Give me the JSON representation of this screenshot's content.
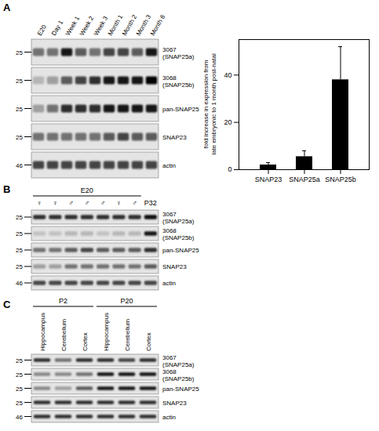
{
  "chart_data": {
    "type": "bar",
    "ylabel": "fold increase in expression from late embryonic to 1 month post-natal",
    "categories": [
      "SNAP23",
      "SNAP25a",
      "SNAP25b"
    ],
    "values": [
      2,
      5.5,
      38
    ],
    "errors": [
      1,
      2.5,
      14
    ],
    "color": "#000000",
    "ylim": [
      0,
      55
    ],
    "yticks": [
      0,
      20,
      40
    ]
  },
  "panels": [
    {
      "letter": "A",
      "lanes": [
        "E20",
        "Day 1",
        "Week 1",
        "Week 2",
        "Week 3",
        "Month 1",
        "Month 2",
        "Month 3",
        "Month 6"
      ],
      "groups": [],
      "rows": [
        {
          "label": "3067",
          "sublabel": "(SNAP25a)",
          "marker": 25,
          "intensity": [
            0.5,
            0.5,
            0.9,
            0.6,
            0.5,
            0.7,
            0.7,
            0.6,
            0.9
          ]
        },
        {
          "label": "3068",
          "sublabel": "(SNAP25b)",
          "marker": 25,
          "intensity": [
            0.2,
            0.3,
            0.6,
            0.7,
            0.8,
            0.9,
            0.9,
            0.9,
            1.0
          ]
        },
        {
          "label": "pan-SNAP25",
          "marker": 25,
          "intensity": [
            0.3,
            0.5,
            0.8,
            0.8,
            0.8,
            0.9,
            0.9,
            0.9,
            0.9
          ]
        },
        {
          "label": "SNAP23",
          "marker": 25,
          "intensity": [
            0.5,
            0.5,
            0.5,
            0.5,
            0.5,
            0.6,
            0.7,
            0.6,
            0.6
          ]
        },
        {
          "label": "actin",
          "marker": 46,
          "intensity": [
            0.7,
            0.7,
            0.7,
            0.7,
            0.7,
            0.7,
            0.7,
            0.7,
            0.7
          ]
        }
      ]
    },
    {
      "letter": "B",
      "lanes": [
        "♀",
        "♀",
        "♂",
        "♂",
        "♂",
        "♀",
        "♂",
        "P32"
      ],
      "groups": [
        {
          "label": "E20",
          "count": 7
        }
      ],
      "rows": [
        {
          "label": "3067",
          "sublabel": "(SNAP25a)",
          "marker": 25,
          "intensity": [
            0.8,
            0.8,
            0.8,
            0.8,
            0.8,
            0.8,
            0.8,
            0.95
          ]
        },
        {
          "label": "3068",
          "sublabel": "(SNAP25b)",
          "marker": 25,
          "intensity": [
            0.15,
            0.15,
            0.2,
            0.2,
            0.15,
            0.2,
            0.2,
            0.9
          ]
        },
        {
          "label": "pan-SNAP25",
          "marker": 25,
          "intensity": [
            0.5,
            0.5,
            0.6,
            0.7,
            0.6,
            0.6,
            0.6,
            0.8
          ]
        },
        {
          "label": "SNAP23",
          "marker": 25,
          "intensity": [
            0.3,
            0.3,
            0.5,
            0.5,
            0.5,
            0.5,
            0.5,
            0.6
          ]
        },
        {
          "label": "actin",
          "marker": 46,
          "intensity": [
            0.7,
            0.7,
            0.7,
            0.7,
            0.7,
            0.7,
            0.7,
            0.7
          ]
        }
      ]
    },
    {
      "letter": "C",
      "lanes": [
        "Hippocampus",
        "Cerebellum",
        "Cortex",
        "Hippocampus",
        "Cerebellum",
        "Cortex"
      ],
      "groups": [
        {
          "label": "P2",
          "count": 3
        },
        {
          "label": "P20",
          "count": 3
        }
      ],
      "rows": [
        {
          "label": "3067",
          "sublabel": "(SNAP25a)",
          "marker": 25,
          "intensity": [
            0.8,
            0.5,
            0.8,
            0.8,
            0.7,
            0.8
          ]
        },
        {
          "label": "3068",
          "sublabel": "(SNAP25b)",
          "marker": 25,
          "intensity": [
            0.4,
            0.4,
            0.5,
            0.9,
            0.9,
            0.9
          ]
        },
        {
          "label": "pan-SNAP25",
          "marker": 25,
          "intensity": [
            0.4,
            0.3,
            0.6,
            0.9,
            0.9,
            0.9
          ]
        },
        {
          "label": "SNAP23",
          "marker": 25,
          "intensity": [
            0.8,
            0.8,
            0.8,
            0.8,
            0.8,
            0.8
          ]
        },
        {
          "label": "actin",
          "marker": 46,
          "intensity": [
            0.8,
            0.8,
            0.8,
            0.8,
            0.8,
            0.8
          ]
        }
      ]
    }
  ]
}
